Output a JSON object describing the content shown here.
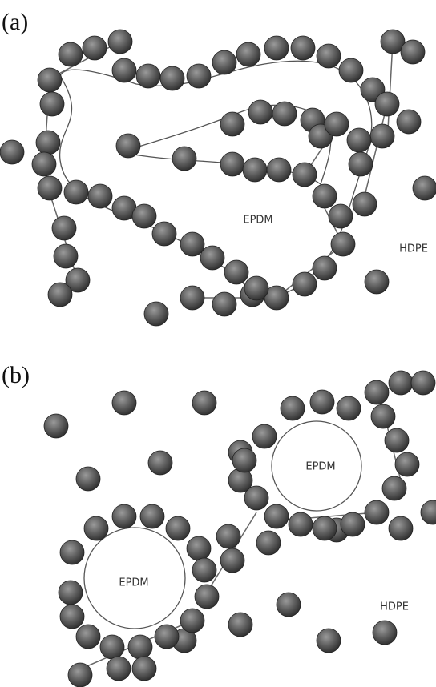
{
  "panels": [
    {
      "label": "(a)",
      "regions": [
        "EPDM",
        "HDPE"
      ]
    },
    {
      "label": "(b)",
      "regions": [
        "EPDM",
        "EPDM",
        "HDPE"
      ]
    }
  ]
}
